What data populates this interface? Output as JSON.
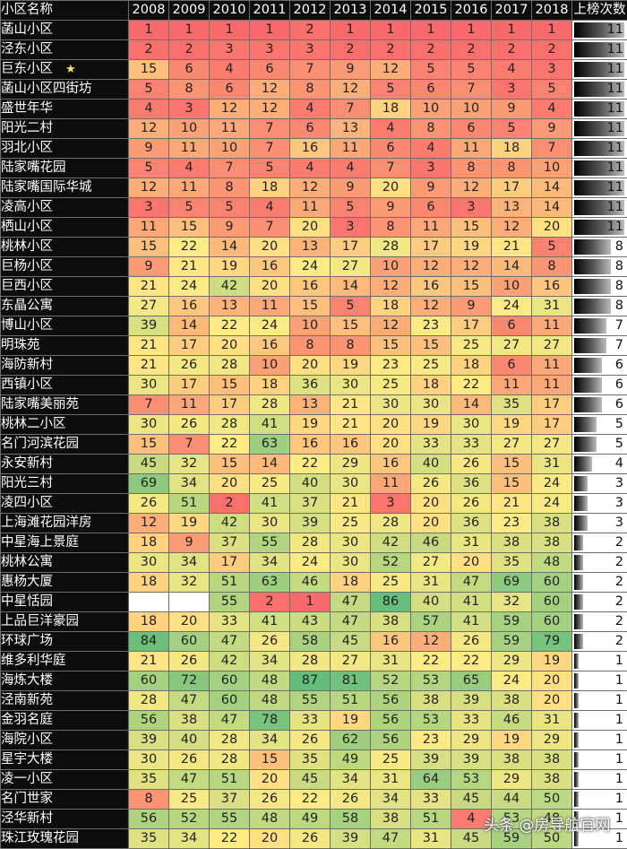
{
  "chart_data": {
    "type": "heatmap",
    "title": "",
    "header_name": "小区名称",
    "header_count": "上榜次数",
    "years": [
      "2008",
      "2009",
      "2010",
      "2011",
      "2012",
      "2013",
      "2014",
      "2015",
      "2016",
      "2017",
      "2018"
    ],
    "color_scale": {
      "low_rank": "#f8696b",
      "mid_rank": "#ffeb84",
      "high_rank": "#63be7b",
      "empty": "#ffffff"
    },
    "rows": [
      {
        "name": "菡山小区",
        "ranks": [
          1,
          1,
          1,
          1,
          2,
          1,
          1,
          1,
          1,
          1,
          1
        ],
        "count": 11
      },
      {
        "name": "泾东小区",
        "ranks": [
          2,
          2,
          3,
          3,
          3,
          2,
          2,
          2,
          2,
          2,
          2
        ],
        "count": 11
      },
      {
        "name": "巨东小区",
        "star": true,
        "ranks": [
          15,
          6,
          4,
          6,
          7,
          9,
          12,
          5,
          5,
          4,
          3
        ],
        "count": 11
      },
      {
        "name": "菡山小区四街坊",
        "ranks": [
          5,
          8,
          6,
          12,
          8,
          12,
          5,
          6,
          7,
          3,
          5
        ],
        "count": 11
      },
      {
        "name": "盛世年华",
        "ranks": [
          4,
          3,
          12,
          12,
          4,
          7,
          18,
          10,
          10,
          9,
          4
        ],
        "count": 11
      },
      {
        "name": "阳光二村",
        "ranks": [
          12,
          10,
          11,
          7,
          6,
          13,
          4,
          8,
          6,
          5,
          9
        ],
        "count": 11
      },
      {
        "name": "羽北小区",
        "ranks": [
          9,
          11,
          10,
          7,
          16,
          11,
          6,
          4,
          11,
          18,
          7
        ],
        "count": 11
      },
      {
        "name": "陆家嘴花园",
        "ranks": [
          5,
          4,
          7,
          5,
          4,
          4,
          7,
          3,
          8,
          8,
          10
        ],
        "count": 11
      },
      {
        "name": "陆家嘴国际华城",
        "ranks": [
          12,
          11,
          8,
          18,
          12,
          9,
          20,
          9,
          12,
          17,
          14
        ],
        "count": 11
      },
      {
        "name": "凌高小区",
        "ranks": [
          3,
          5,
          5,
          4,
          11,
          5,
          9,
          6,
          3,
          13,
          14
        ],
        "count": 11
      },
      {
        "name": "栖山小区",
        "ranks": [
          11,
          15,
          9,
          7,
          20,
          3,
          8,
          11,
          15,
          12,
          20
        ],
        "count": 11
      },
      {
        "name": "桃林小区",
        "ranks": [
          15,
          22,
          14,
          20,
          13,
          17,
          28,
          17,
          19,
          21,
          5
        ],
        "count": 8
      },
      {
        "name": "巨杨小区",
        "ranks": [
          9,
          21,
          19,
          16,
          24,
          27,
          10,
          12,
          12,
          14,
          8
        ],
        "count": 8
      },
      {
        "name": "巨西小区",
        "ranks": [
          21,
          24,
          42,
          20,
          16,
          14,
          12,
          16,
          15,
          10,
          16
        ],
        "count": 8
      },
      {
        "name": "东晶公寓",
        "ranks": [
          27,
          16,
          13,
          11,
          15,
          5,
          18,
          12,
          9,
          24,
          31
        ],
        "count": 8
      },
      {
        "name": "博山小区",
        "ranks": [
          39,
          14,
          22,
          24,
          10,
          15,
          12,
          23,
          17,
          6,
          11
        ],
        "count": 7
      },
      {
        "name": "明珠苑",
        "ranks": [
          21,
          17,
          20,
          16,
          8,
          8,
          15,
          15,
          25,
          27,
          27
        ],
        "count": 7
      },
      {
        "name": "海防新村",
        "ranks": [
          21,
          26,
          28,
          10,
          20,
          19,
          23,
          25,
          18,
          6,
          11
        ],
        "count": 6
      },
      {
        "name": "西镇小区",
        "ranks": [
          30,
          17,
          15,
          18,
          36,
          30,
          25,
          18,
          22,
          11,
          11
        ],
        "count": 6
      },
      {
        "name": "陆家嘴美丽苑",
        "ranks": [
          7,
          11,
          17,
          28,
          13,
          21,
          30,
          30,
          14,
          35,
          17
        ],
        "count": 6
      },
      {
        "name": "桃林二小区",
        "ranks": [
          30,
          26,
          28,
          41,
          19,
          21,
          20,
          19,
          30,
          19,
          17
        ],
        "count": 5
      },
      {
        "name": "名门河滨花园",
        "ranks": [
          15,
          7,
          22,
          63,
          16,
          16,
          20,
          33,
          33,
          27,
          27
        ],
        "count": 5
      },
      {
        "name": "永安新村",
        "ranks": [
          45,
          32,
          15,
          14,
          22,
          29,
          16,
          40,
          26,
          15,
          31
        ],
        "count": 4
      },
      {
        "name": "阳光三村",
        "ranks": [
          69,
          34,
          20,
          25,
          40,
          30,
          11,
          26,
          36,
          15,
          24
        ],
        "count": 3
      },
      {
        "name": "凌四小区",
        "ranks": [
          26,
          51,
          2,
          41,
          37,
          21,
          3,
          20,
          26,
          21,
          24
        ],
        "count": 3
      },
      {
        "name": "上海滩花园洋房",
        "ranks": [
          12,
          19,
          42,
          30,
          39,
          25,
          28,
          20,
          36,
          23,
          38
        ],
        "count": 3
      },
      {
        "name": "中星海上景庭",
        "ranks": [
          18,
          9,
          37,
          55,
          28,
          30,
          42,
          46,
          31,
          38,
          38
        ],
        "count": 2
      },
      {
        "name": "桃林公寓",
        "ranks": [
          30,
          34,
          17,
          34,
          24,
          30,
          52,
          27,
          20,
          35,
          48
        ],
        "count": 2
      },
      {
        "name": "惠杨大厦",
        "ranks": [
          18,
          32,
          51,
          63,
          46,
          18,
          25,
          31,
          47,
          69,
          60
        ],
        "count": 2
      },
      {
        "name": "中星恬园",
        "ranks": [
          null,
          null,
          55,
          2,
          1,
          47,
          86,
          40,
          41,
          32,
          60
        ],
        "count": 2
      },
      {
        "name": "上品巨洋豪园",
        "ranks": [
          18,
          20,
          33,
          41,
          43,
          47,
          38,
          57,
          41,
          59,
          60
        ],
        "count": 2
      },
      {
        "name": "环球广场",
        "ranks": [
          84,
          60,
          47,
          26,
          58,
          45,
          16,
          12,
          26,
          59,
          79
        ],
        "count": 2
      },
      {
        "name": "维多利华庭",
        "ranks": [
          21,
          26,
          42,
          34,
          28,
          27,
          31,
          22,
          22,
          29,
          19
        ],
        "count": 1
      },
      {
        "name": "海炼大楼",
        "ranks": [
          60,
          72,
          60,
          48,
          87,
          81,
          52,
          53,
          65,
          24,
          20
        ],
        "count": 1
      },
      {
        "name": "泾南新苑",
        "ranks": [
          28,
          47,
          60,
          48,
          55,
          51,
          56,
          38,
          39,
          38,
          20
        ],
        "count": 1
      },
      {
        "name": "金羽名庭",
        "ranks": [
          56,
          38,
          47,
          78,
          33,
          19,
          56,
          53,
          33,
          46,
          31
        ],
        "count": 1
      },
      {
        "name": "海院小区",
        "ranks": [
          39,
          40,
          28,
          34,
          26,
          62,
          56,
          23,
          29,
          19,
          29
        ],
        "count": 1
      },
      {
        "name": "星宇大楼",
        "ranks": [
          30,
          26,
          28,
          15,
          35,
          49,
          25,
          39,
          39,
          38,
          38
        ],
        "count": 1
      },
      {
        "name": "凌一小区",
        "ranks": [
          35,
          47,
          51,
          20,
          45,
          34,
          31,
          64,
          53,
          29,
          38
        ],
        "count": 1
      },
      {
        "name": "名门世家",
        "ranks": [
          8,
          25,
          37,
          26,
          22,
          26,
          34,
          33,
          45,
          44,
          50
        ],
        "count": 1
      },
      {
        "name": "泾华新村",
        "ranks": [
          56,
          52,
          55,
          48,
          49,
          58,
          38,
          51,
          4,
          53,
          48
        ],
        "count": 1
      },
      {
        "name": "珠江玫瑰花园",
        "ranks": [
          35,
          34,
          22,
          20,
          26,
          39,
          47,
          31,
          45,
          59,
          50
        ],
        "count": 1
      }
    ],
    "max_count": 11
  },
  "watermark": "头条 @房导航官网"
}
